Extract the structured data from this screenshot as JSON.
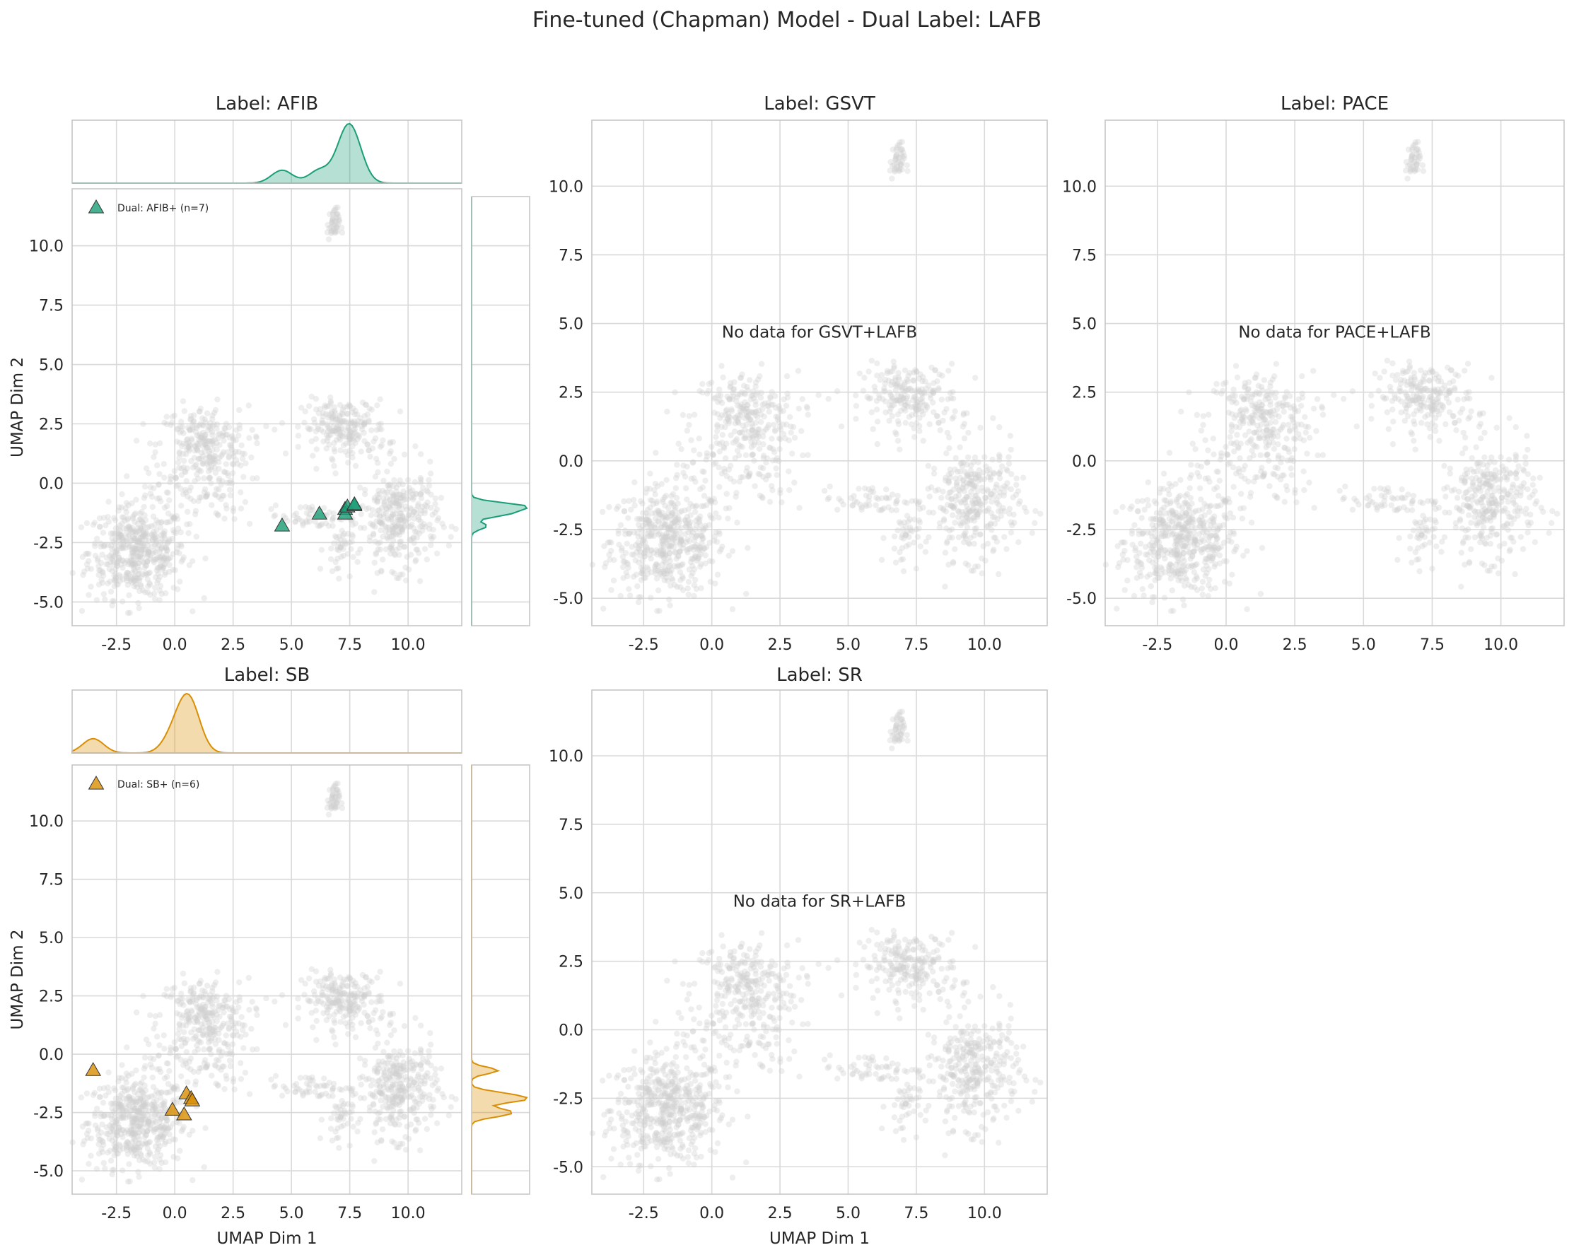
{
  "figure": {
    "title": "Fine-tuned (Chapman) Model - Dual Label: LAFB"
  },
  "colors": {
    "afib": "#1a9e77",
    "sb": "#d98e04",
    "background_points": "#cfcfcf",
    "grid": "#d9d9d9",
    "axes_edge": "#c6c6c6"
  },
  "background_clusters": [
    {
      "cx": -1.6,
      "cy": -2.9,
      "sx": 1.4,
      "sy": 1.3,
      "n": 520
    },
    {
      "cx": 1.2,
      "cy": 1.6,
      "sx": 1.3,
      "sy": 1.1,
      "n": 260
    },
    {
      "cx": 1.0,
      "cy": -0.4,
      "sx": 1.4,
      "sy": 0.8,
      "n": 80
    },
    {
      "cx": 7.3,
      "cy": 2.3,
      "sx": 1.2,
      "sy": 0.8,
      "n": 220
    },
    {
      "cx": 9.6,
      "cy": -1.5,
      "sx": 1.1,
      "sy": 1.4,
      "n": 330
    },
    {
      "cx": 6.0,
      "cy": -1.4,
      "sx": 1.4,
      "sy": 0.35,
      "n": 60
    },
    {
      "cx": 7.0,
      "cy": -2.8,
      "sx": 0.4,
      "sy": 0.7,
      "n": 40
    },
    {
      "cx": 6.8,
      "cy": 10.9,
      "sx": 0.18,
      "sy": 0.45,
      "n": 45
    }
  ],
  "chart_data": [
    {
      "type": "scatter",
      "title": "Label: AFIB",
      "xlabel": "",
      "ylabel": "UMAP Dim 2",
      "xlim": [
        -4.4,
        12.3
      ],
      "ylim": [
        -6.0,
        12.4
      ],
      "xticks": [
        "-2.5",
        "0.0",
        "2.5",
        "5.0",
        "7.5",
        "10.0"
      ],
      "yticks": [
        "-5.0",
        "-2.5",
        "0.0",
        "2.5",
        "5.0",
        "7.5",
        "10.0"
      ],
      "legend": "Dual: AFIB+ (n=7)",
      "legend_position": "upper-left",
      "message": "",
      "marginals": true,
      "color_key": "afib",
      "points": [
        {
          "x": 4.6,
          "y": -1.8
        },
        {
          "x": 6.2,
          "y": -1.3
        },
        {
          "x": 7.3,
          "y": -1.1
        },
        {
          "x": 7.3,
          "y": -1.3
        },
        {
          "x": 7.4,
          "y": -1.0
        },
        {
          "x": 7.7,
          "y": -0.95
        },
        {
          "x": 7.7,
          "y": -0.9
        }
      ]
    },
    {
      "type": "scatter",
      "title": "Label: GSVT",
      "xlabel": "",
      "ylabel": "",
      "xlim": [
        -4.4,
        12.3
      ],
      "ylim": [
        -6.0,
        12.4
      ],
      "xticks": [
        "-2.5",
        "0.0",
        "2.5",
        "5.0",
        "7.5",
        "10.0"
      ],
      "yticks": [
        "-5.0",
        "-2.5",
        "0.0",
        "2.5",
        "5.0",
        "7.5",
        "10.0"
      ],
      "legend": "",
      "message": "No data for GSVT+LAFB",
      "marginals": false,
      "points": []
    },
    {
      "type": "scatter",
      "title": "Label: PACE",
      "xlabel": "",
      "ylabel": "",
      "xlim": [
        -4.4,
        12.3
      ],
      "ylim": [
        -6.0,
        12.4
      ],
      "xticks": [
        "-2.5",
        "0.0",
        "2.5",
        "5.0",
        "7.5",
        "10.0"
      ],
      "yticks": [
        "-5.0",
        "-2.5",
        "0.0",
        "2.5",
        "5.0",
        "7.5",
        "10.0"
      ],
      "legend": "",
      "message": "No data for PACE+LAFB",
      "marginals": false,
      "points": []
    },
    {
      "type": "scatter",
      "title": "Label: SB",
      "xlabel": "UMAP Dim 1",
      "ylabel": "UMAP Dim 2",
      "xlim": [
        -4.4,
        12.3
      ],
      "ylim": [
        -6.0,
        12.4
      ],
      "xticks": [
        "-2.5",
        "0.0",
        "2.5",
        "5.0",
        "7.5",
        "10.0"
      ],
      "yticks": [
        "-5.0",
        "-2.5",
        "0.0",
        "2.5",
        "5.0",
        "7.5",
        "10.0"
      ],
      "legend": "Dual: SB+ (n=6)",
      "legend_position": "upper-left",
      "message": "",
      "marginals": true,
      "color_key": "sb",
      "points": [
        {
          "x": -3.5,
          "y": -0.7
        },
        {
          "x": -0.1,
          "y": -2.4
        },
        {
          "x": 0.4,
          "y": -2.6
        },
        {
          "x": 0.5,
          "y": -1.7
        },
        {
          "x": 0.7,
          "y": -1.9
        },
        {
          "x": 0.75,
          "y": -2.0
        }
      ]
    },
    {
      "type": "scatter",
      "title": "Label: SR",
      "xlabel": "UMAP Dim 1",
      "ylabel": "",
      "xlim": [
        -4.4,
        12.3
      ],
      "ylim": [
        -6.0,
        12.4
      ],
      "xticks": [
        "-2.5",
        "0.0",
        "2.5",
        "5.0",
        "7.5",
        "10.0"
      ],
      "yticks": [
        "-5.0",
        "-2.5",
        "0.0",
        "2.5",
        "5.0",
        "7.5",
        "10.0"
      ],
      "legend": "",
      "message": "No data for SR+LAFB",
      "marginals": false,
      "points": []
    }
  ]
}
